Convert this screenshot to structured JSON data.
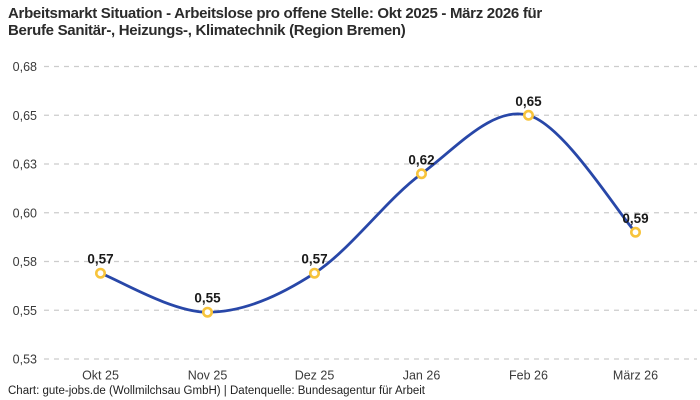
{
  "header": {
    "title_line1": "Arbeitsmarkt Situation - Arbeitslose pro offene Stelle: Okt 2025 - März 2026 für",
    "title_line2": "Berufe Sanitär-, Heizungs-, Klimatechnik (Region Bremen)"
  },
  "footer": {
    "credit": "Chart: gute-jobs.de (Wollmilchsau GmbH) | Datenquelle: Bundesagentur für Arbeit"
  },
  "chart_data": {
    "type": "line",
    "title": "Arbeitsmarkt Situation - Arbeitslose pro offene Stelle: Okt 2025 - März 2026 für Berufe Sanitär-, Heizungs-, Klimatechnik (Region Bremen)",
    "xlabel": "",
    "ylabel": "",
    "categories": [
      "Okt 25",
      "Nov 25",
      "Dez 25",
      "Jan 26",
      "Feb 26",
      "März 26"
    ],
    "values": [
      0.57,
      0.55,
      0.57,
      0.62,
      0.65,
      0.59
    ],
    "point_labels": [
      "0,57",
      "0,55",
      "0,57",
      "0,62",
      "0,65",
      "0,59"
    ],
    "values_precise_estimate": [
      0.574,
      0.554,
      0.574,
      0.625,
      0.655,
      0.595
    ],
    "y_axis": {
      "min": 0.53,
      "max": 0.68,
      "tick_values": [
        0.53,
        0.555,
        0.58,
        0.605,
        0.63,
        0.655,
        0.68
      ],
      "tick_labels": [
        "0,53",
        "0,55",
        "0,58",
        "0,60",
        "0,63",
        "0,65",
        "0,68"
      ]
    },
    "grid": "dashed-horizontal",
    "legend": "none",
    "line_shape": "spline",
    "style": {
      "line_color": "#2847a8",
      "marker_stroke": "#f7c43c",
      "marker_fill": "#ffffff",
      "grid_color": "#cccccc",
      "point_label_color": "#1a1a1a",
      "axis_text_color": "#3a3a3a",
      "background": "#ffffff"
    }
  }
}
